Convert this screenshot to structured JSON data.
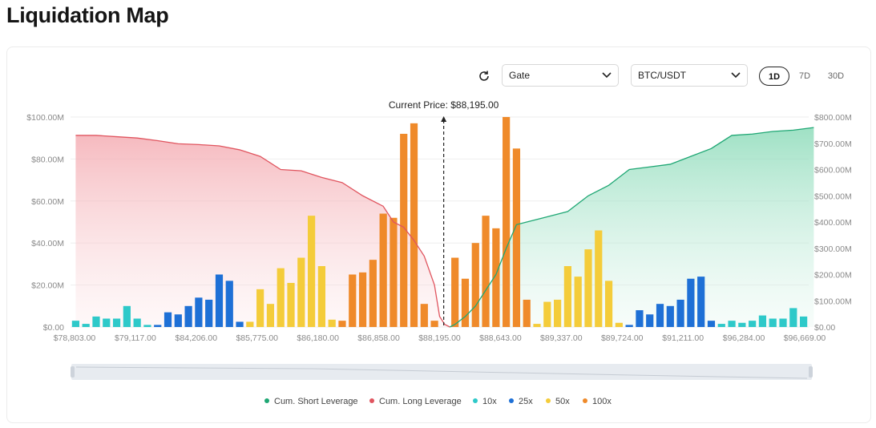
{
  "page": {
    "title": "Liquidation Map"
  },
  "controls": {
    "exchange": "Gate",
    "pair": "BTC/USDT",
    "ranges": [
      "1D",
      "7D",
      "30D"
    ],
    "active_range": "1D"
  },
  "icons": {
    "refresh": "refresh-icon",
    "dropdown": "chevron-down-icon"
  },
  "colors": {
    "short": "#1fa774",
    "long": "#e0555f",
    "10x": "#2ec9c9",
    "25x": "#1e70d6",
    "50x": "#f4cc3a",
    "100x": "#ef8a2a"
  },
  "chart_data": {
    "type": "bar",
    "current_price_label": "Current Price: $88,195.00",
    "x_tick_labels": [
      "$78,803.00",
      "$79,117.00",
      "$84,206.00",
      "$85,775.00",
      "$86,180.00",
      "$86,858.00",
      "$88,195.00",
      "$88,643.00",
      "$89,337.00",
      "$89,724.00",
      "$91,211.00",
      "$96,284.00",
      "$96,669.00"
    ],
    "left_axis": {
      "ticks": [
        "$0.00",
        "$20.00M",
        "$40.00M",
        "$60.00M",
        "$80.00M",
        "$100.00M"
      ],
      "ylim": [
        0,
        100000000
      ]
    },
    "right_axis": {
      "ticks": [
        "$0.00",
        "$100.00M",
        "$200.00M",
        "$300.00M",
        "$400.00M",
        "$500.00M",
        "$600.00M",
        "$700.00M",
        "$800.00M"
      ],
      "ylim": [
        0,
        800000000
      ]
    },
    "legend": [
      "Cum. Short Leverage",
      "Cum. Long Leverage",
      "10x",
      "25x",
      "50x",
      "100x"
    ],
    "bars_m": [
      {
        "lev": "10x",
        "v": 3
      },
      {
        "lev": "10x",
        "v": 1.5
      },
      {
        "lev": "10x",
        "v": 5
      },
      {
        "lev": "10x",
        "v": 4
      },
      {
        "lev": "10x",
        "v": 4
      },
      {
        "lev": "10x",
        "v": 10
      },
      {
        "lev": "10x",
        "v": 4
      },
      {
        "lev": "10x",
        "v": 1
      },
      {
        "lev": "25x",
        "v": 1
      },
      {
        "lev": "25x",
        "v": 7
      },
      {
        "lev": "25x",
        "v": 6
      },
      {
        "lev": "25x",
        "v": 10
      },
      {
        "lev": "25x",
        "v": 14
      },
      {
        "lev": "25x",
        "v": 13
      },
      {
        "lev": "25x",
        "v": 25
      },
      {
        "lev": "25x",
        "v": 22
      },
      {
        "lev": "25x",
        "v": 2.5
      },
      {
        "lev": "50x",
        "v": 2.5
      },
      {
        "lev": "50x",
        "v": 18
      },
      {
        "lev": "50x",
        "v": 11
      },
      {
        "lev": "50x",
        "v": 28
      },
      {
        "lev": "50x",
        "v": 21
      },
      {
        "lev": "50x",
        "v": 33
      },
      {
        "lev": "50x",
        "v": 53
      },
      {
        "lev": "50x",
        "v": 29
      },
      {
        "lev": "50x",
        "v": 3.5
      },
      {
        "lev": "100x",
        "v": 3
      },
      {
        "lev": "100x",
        "v": 25
      },
      {
        "lev": "100x",
        "v": 26
      },
      {
        "lev": "100x",
        "v": 32
      },
      {
        "lev": "100x",
        "v": 54
      },
      {
        "lev": "100x",
        "v": 52
      },
      {
        "lev": "100x",
        "v": 92
      },
      {
        "lev": "100x",
        "v": 97
      },
      {
        "lev": "100x",
        "v": 11
      },
      {
        "lev": "100x",
        "v": 3
      },
      {
        "lev": "100x",
        "v": 0
      },
      {
        "lev": "100x",
        "v": 33
      },
      {
        "lev": "100x",
        "v": 23
      },
      {
        "lev": "100x",
        "v": 40
      },
      {
        "lev": "100x",
        "v": 53
      },
      {
        "lev": "100x",
        "v": 47
      },
      {
        "lev": "100x",
        "v": 100
      },
      {
        "lev": "100x",
        "v": 85
      },
      {
        "lev": "100x",
        "v": 13
      },
      {
        "lev": "50x",
        "v": 1.5
      },
      {
        "lev": "50x",
        "v": 12
      },
      {
        "lev": "50x",
        "v": 13
      },
      {
        "lev": "50x",
        "v": 29
      },
      {
        "lev": "50x",
        "v": 24
      },
      {
        "lev": "50x",
        "v": 37
      },
      {
        "lev": "50x",
        "v": 46
      },
      {
        "lev": "50x",
        "v": 22
      },
      {
        "lev": "50x",
        "v": 2
      },
      {
        "lev": "25x",
        "v": 1
      },
      {
        "lev": "25x",
        "v": 8
      },
      {
        "lev": "25x",
        "v": 6
      },
      {
        "lev": "25x",
        "v": 11
      },
      {
        "lev": "25x",
        "v": 10
      },
      {
        "lev": "25x",
        "v": 13
      },
      {
        "lev": "25x",
        "v": 23
      },
      {
        "lev": "25x",
        "v": 24
      },
      {
        "lev": "25x",
        "v": 3
      },
      {
        "lev": "10x",
        "v": 1.5
      },
      {
        "lev": "10x",
        "v": 3
      },
      {
        "lev": "10x",
        "v": 2
      },
      {
        "lev": "10x",
        "v": 3
      },
      {
        "lev": "10x",
        "v": 5.5
      },
      {
        "lev": "10x",
        "v": 4
      },
      {
        "lev": "10x",
        "v": 4
      },
      {
        "lev": "10x",
        "v": 9
      },
      {
        "lev": "10x",
        "v": 5
      }
    ],
    "cum_long_m": [
      [
        0,
        730
      ],
      [
        2,
        730
      ],
      [
        4,
        725
      ],
      [
        6,
        720
      ],
      [
        8,
        710
      ],
      [
        10,
        698
      ],
      [
        12,
        695
      ],
      [
        14,
        690
      ],
      [
        16,
        675
      ],
      [
        18,
        650
      ],
      [
        20,
        600
      ],
      [
        22,
        595
      ],
      [
        24,
        570
      ],
      [
        26,
        550
      ],
      [
        28,
        500
      ],
      [
        30,
        460
      ],
      [
        31,
        400
      ],
      [
        32,
        380
      ],
      [
        33,
        330
      ],
      [
        34,
        270
      ],
      [
        35,
        160
      ],
      [
        35.5,
        40
      ],
      [
        36,
        10
      ],
      [
        36.5,
        0
      ]
    ],
    "cum_short_m": [
      [
        36.5,
        0
      ],
      [
        37,
        10
      ],
      [
        38,
        40
      ],
      [
        39,
        80
      ],
      [
        40,
        140
      ],
      [
        41,
        200
      ],
      [
        42,
        300
      ],
      [
        43,
        390
      ],
      [
        44,
        400
      ],
      [
        46,
        420
      ],
      [
        48,
        440
      ],
      [
        50,
        500
      ],
      [
        52,
        540
      ],
      [
        54,
        600
      ],
      [
        56,
        610
      ],
      [
        58,
        620
      ],
      [
        60,
        650
      ],
      [
        62,
        680
      ],
      [
        64,
        730
      ],
      [
        66,
        735
      ],
      [
        68,
        745
      ],
      [
        70,
        750
      ],
      [
        71,
        755
      ],
      [
        72,
        760
      ]
    ]
  }
}
